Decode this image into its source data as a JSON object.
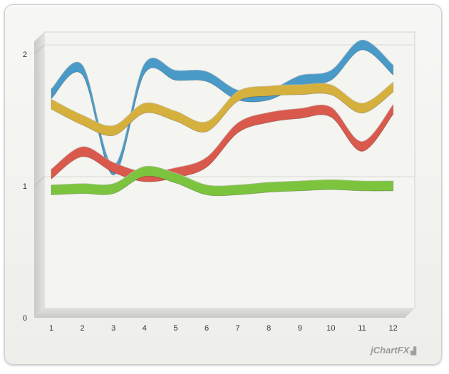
{
  "chart_data": {
    "type": "line",
    "style": "3d-ribbon",
    "x": [
      1,
      2,
      3,
      4,
      5,
      6,
      7,
      8,
      9,
      10,
      11,
      12
    ],
    "xticks": [
      "1",
      "2",
      "3",
      "4",
      "5",
      "6",
      "7",
      "8",
      "9",
      "10",
      "11",
      "12"
    ],
    "yticks": [
      "0",
      "1",
      "2"
    ],
    "ylim": [
      0,
      2
    ],
    "grid": true,
    "legend": "none",
    "series": [
      {
        "color": "#4a9ac8",
        "values": [
          1.63,
          1.81,
          1.05,
          1.82,
          1.77,
          1.76,
          1.62,
          1.62,
          1.73,
          1.77,
          2.0,
          1.81
        ]
      },
      {
        "color": "#d6b03c",
        "values": [
          1.55,
          1.43,
          1.35,
          1.52,
          1.46,
          1.38,
          1.61,
          1.65,
          1.66,
          1.66,
          1.52,
          1.68
        ]
      },
      {
        "color": "#d9594c",
        "values": [
          1.02,
          1.19,
          1.07,
          1.0,
          1.03,
          1.11,
          1.37,
          1.45,
          1.48,
          1.49,
          1.23,
          1.51
        ]
      },
      {
        "color": "#7cc43e",
        "values": [
          0.9,
          0.91,
          0.91,
          1.04,
          0.99,
          0.9,
          0.9,
          0.92,
          0.93,
          0.94,
          0.93,
          0.93
        ]
      }
    ],
    "brand": "jChartFX"
  }
}
